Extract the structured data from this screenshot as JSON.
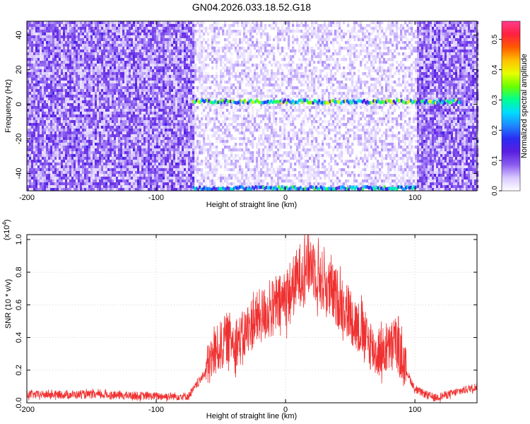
{
  "title": "GN04.2026.033.18.52.G18",
  "chart_data": [
    {
      "type": "heatmap",
      "title": "GN04.2026.033.18.52.G18",
      "xlabel": "Height of straight line (km)",
      "ylabel": "Frequency (Hz)",
      "xlim": [
        -200,
        148
      ],
      "ylim": [
        -50,
        48
      ],
      "x_ticks": [
        -200,
        -100,
        0,
        100
      ],
      "y_ticks": [
        -40,
        -20,
        0,
        20,
        40
      ],
      "colorbar": {
        "label": "Normalized spectral amplitude",
        "range": [
          0,
          0.56
        ],
        "ticks": [
          0.0,
          0.1,
          0.2,
          0.3,
          0.4,
          0.5
        ],
        "colors": [
          "#ffffff",
          "#d8c8ff",
          "#8a5cf0",
          "#5a1ee0",
          "#2b2cf2",
          "#1e88ff",
          "#00dcff",
          "#00ff90",
          "#6aff00",
          "#e6ff00",
          "#ffc000",
          "#ff5a00",
          "#ff2040",
          "#ff3c8c"
        ]
      },
      "regions": {
        "strong_noise_left_until_km": -72,
        "light_region_km": [
          -72,
          100
        ],
        "strong_noise_right_from_km": 100
      },
      "signal_lines": [
        {
          "freq_hz": 1.5,
          "from_km": -72,
          "to_km": 135,
          "amplitude": 0.3
        },
        {
          "freq_hz": -48.5,
          "from_km": -72,
          "to_km": 100,
          "amplitude": 0.25
        }
      ]
    },
    {
      "type": "line",
      "xlabel": "Height of straight line (km)",
      "ylabel": "SNR (10 * v/v)",
      "scale_label": "(x10",
      "scale_exp": "4",
      "scale_close": ")",
      "xlim": [
        -200,
        148
      ],
      "ylim": [
        0,
        1.03
      ],
      "x_ticks": [
        -200,
        -100,
        0,
        100
      ],
      "y_ticks": [
        0.0,
        0.2,
        0.4,
        0.6,
        0.8,
        1.0
      ],
      "color": "#f03030",
      "envelope": [
        {
          "x": -200,
          "y": 0.05
        },
        {
          "x": -150,
          "y": 0.05
        },
        {
          "x": -100,
          "y": 0.04
        },
        {
          "x": -75,
          "y": 0.04
        },
        {
          "x": -65,
          "y": 0.15
        },
        {
          "x": -55,
          "y": 0.3
        },
        {
          "x": -45,
          "y": 0.4
        },
        {
          "x": -35,
          "y": 0.38
        },
        {
          "x": -25,
          "y": 0.5
        },
        {
          "x": -15,
          "y": 0.55
        },
        {
          "x": -5,
          "y": 0.6
        },
        {
          "x": 5,
          "y": 0.7
        },
        {
          "x": 15,
          "y": 0.84
        },
        {
          "x": 20,
          "y": 0.86
        },
        {
          "x": 30,
          "y": 0.72
        },
        {
          "x": 45,
          "y": 0.6
        },
        {
          "x": 60,
          "y": 0.42
        },
        {
          "x": 70,
          "y": 0.3
        },
        {
          "x": 80,
          "y": 0.33
        },
        {
          "x": 85,
          "y": 0.38
        },
        {
          "x": 92,
          "y": 0.22
        },
        {
          "x": 100,
          "y": 0.08
        },
        {
          "x": 115,
          "y": 0.03
        },
        {
          "x": 130,
          "y": 0.06
        },
        {
          "x": 148,
          "y": 0.1
        }
      ]
    }
  ]
}
